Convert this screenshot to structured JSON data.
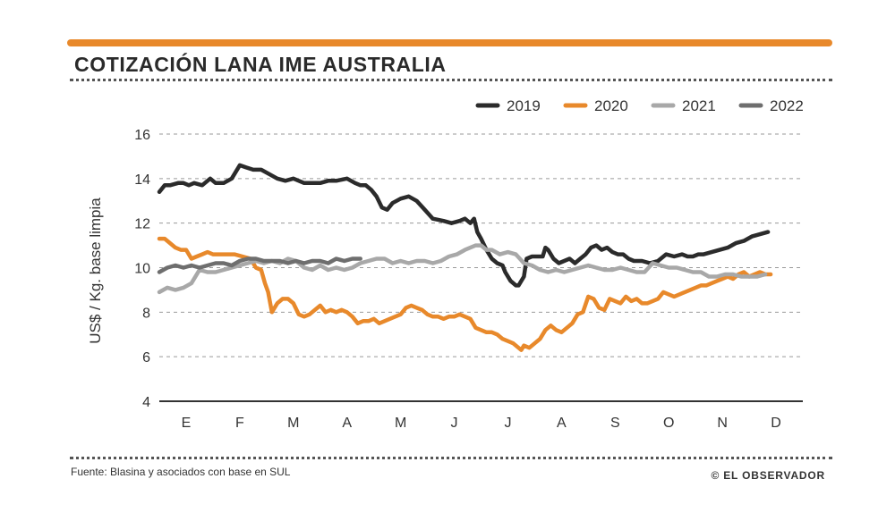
{
  "header": {
    "title": "COTIZACIÓN LANA IME AUSTRALIA"
  },
  "footer": {
    "source": "Fuente: Blasina y asociados con base en SUL",
    "credit": "© EL OBSERVADOR"
  },
  "colors": {
    "accent": "#e8892b"
  },
  "chart_data": {
    "type": "line",
    "title": "COTIZACIÓN LANA IME AUSTRALIA",
    "xlabel": "",
    "ylabel": "US$ / Kg. base limpia",
    "ylim": [
      4,
      16
    ],
    "yticks": [
      4,
      6,
      8,
      10,
      12,
      14,
      16
    ],
    "xlim": [
      0,
      12
    ],
    "months": [
      "E",
      "F",
      "M",
      "A",
      "M",
      "J",
      "J",
      "A",
      "S",
      "O",
      "N",
      "D"
    ],
    "grid": true,
    "legend_position": "top-right",
    "series": [
      {
        "name": "2019",
        "color": "#2b2b2b",
        "x": [
          0.0,
          0.1,
          0.2,
          0.35,
          0.45,
          0.55,
          0.65,
          0.8,
          0.95,
          1.05,
          1.2,
          1.35,
          1.5,
          1.62,
          1.75,
          1.9,
          2.05,
          2.2,
          2.35,
          2.5,
          2.7,
          2.85,
          3.0,
          3.15,
          3.3,
          3.5,
          3.65,
          3.75,
          3.85,
          3.95,
          4.05,
          4.15,
          4.25,
          4.35,
          4.5,
          4.65,
          4.8,
          4.95,
          5.1,
          5.3,
          5.45,
          5.6,
          5.7,
          5.8,
          5.87,
          5.93,
          6.0,
          6.1,
          6.2,
          6.3,
          6.4,
          6.45,
          6.55,
          6.65,
          6.7,
          6.8,
          6.85,
          6.95,
          7.05,
          7.15,
          7.2,
          7.25,
          7.35,
          7.45,
          7.55,
          7.65,
          7.75,
          7.85,
          7.95,
          8.05,
          8.15,
          8.25,
          8.35,
          8.45,
          8.55,
          8.65,
          8.75,
          8.85,
          9.0,
          9.15,
          9.3,
          9.45,
          9.6,
          9.75,
          9.85,
          9.95,
          10.05,
          10.15,
          10.3,
          10.45,
          10.6,
          10.75,
          10.9,
          11.05,
          11.2,
          11.35
        ],
        "values": [
          13.4,
          13.7,
          13.7,
          13.8,
          13.8,
          13.7,
          13.8,
          13.7,
          14.0,
          13.8,
          13.8,
          14.0,
          14.6,
          14.5,
          14.4,
          14.4,
          14.2,
          14.0,
          13.9,
          14.0,
          13.8,
          13.8,
          13.8,
          13.9,
          13.9,
          14.0,
          13.8,
          13.7,
          13.7,
          13.5,
          13.2,
          12.7,
          12.6,
          12.9,
          13.1,
          13.2,
          13.0,
          12.6,
          12.2,
          12.1,
          12.0,
          12.1,
          12.2,
          12.0,
          12.2,
          11.6,
          11.3,
          10.8,
          10.4,
          10.2,
          10.1,
          9.8,
          9.4,
          9.2,
          9.2,
          9.6,
          10.4,
          10.5,
          10.5,
          10.5,
          10.9,
          10.8,
          10.4,
          10.2,
          10.3,
          10.4,
          10.2,
          10.4,
          10.6,
          10.9,
          11.0,
          10.8,
          10.9,
          10.7,
          10.6,
          10.6,
          10.4,
          10.3,
          10.3,
          10.2,
          10.3,
          10.6,
          10.5,
          10.6,
          10.5,
          10.5,
          10.6,
          10.6,
          10.7,
          10.8,
          10.9,
          11.1,
          11.2,
          11.4,
          11.5,
          11.6
        ]
      },
      {
        "name": "2020",
        "color": "#e8892b",
        "x": [
          0.0,
          0.1,
          0.2,
          0.3,
          0.4,
          0.5,
          0.6,
          0.7,
          0.8,
          0.9,
          1.0,
          1.1,
          1.25,
          1.4,
          1.55,
          1.7,
          1.8,
          1.9,
          1.97,
          2.03,
          2.1,
          2.2,
          2.3,
          2.4,
          2.5,
          2.6,
          2.7,
          2.8,
          2.9,
          3.0,
          3.1,
          3.2,
          3.3,
          3.4,
          3.5,
          3.6,
          3.7,
          3.8,
          3.9,
          4.0,
          4.1,
          4.2,
          4.3,
          4.4,
          4.5,
          4.6,
          4.7,
          4.8,
          4.9,
          5.0,
          5.1,
          5.2,
          5.3,
          5.4,
          5.5,
          5.6,
          5.7,
          5.8,
          5.9,
          6.0,
          6.1,
          6.2,
          6.3,
          6.4,
          6.5,
          6.6,
          6.7,
          6.75,
          6.8,
          6.9,
          7.0,
          7.1,
          7.2,
          7.3,
          7.4,
          7.5,
          7.6,
          7.7,
          7.8,
          7.9,
          8.0,
          8.1,
          8.2,
          8.3,
          8.4,
          8.5,
          8.6,
          8.7,
          8.8,
          8.9,
          9.0,
          9.1,
          9.2,
          9.3,
          9.4,
          9.5,
          9.6,
          9.7,
          9.8,
          9.9,
          10.0,
          10.1,
          10.2,
          10.3,
          10.4,
          10.5,
          10.6,
          10.7,
          10.8,
          10.9,
          11.0,
          11.1,
          11.2,
          11.3,
          11.4
        ],
        "values": [
          11.3,
          11.3,
          11.1,
          10.9,
          10.8,
          10.8,
          10.4,
          10.5,
          10.6,
          10.7,
          10.6,
          10.6,
          10.6,
          10.6,
          10.5,
          10.4,
          10.0,
          9.9,
          9.3,
          8.9,
          8.0,
          8.4,
          8.6,
          8.6,
          8.4,
          7.9,
          7.8,
          7.9,
          8.1,
          8.3,
          8.0,
          8.1,
          8.0,
          8.1,
          8.0,
          7.8,
          7.5,
          7.6,
          7.6,
          7.7,
          7.5,
          7.6,
          7.7,
          7.8,
          7.9,
          8.2,
          8.3,
          8.2,
          8.1,
          7.9,
          7.8,
          7.8,
          7.7,
          7.8,
          7.8,
          7.9,
          7.8,
          7.7,
          7.3,
          7.2,
          7.1,
          7.1,
          7.0,
          6.8,
          6.7,
          6.6,
          6.4,
          6.3,
          6.5,
          6.4,
          6.6,
          6.8,
          7.2,
          7.4,
          7.2,
          7.1,
          7.3,
          7.5,
          7.9,
          8.0,
          8.7,
          8.6,
          8.2,
          8.1,
          8.6,
          8.5,
          8.4,
          8.7,
          8.5,
          8.6,
          8.4,
          8.4,
          8.5,
          8.6,
          8.9,
          8.8,
          8.7,
          8.8,
          8.9,
          9.0,
          9.1,
          9.2,
          9.2,
          9.3,
          9.4,
          9.5,
          9.6,
          9.5,
          9.7,
          9.8,
          9.6,
          9.7,
          9.8,
          9.7,
          9.7
        ]
      },
      {
        "name": "2021",
        "color": "#a8a8a8",
        "x": [
          0.0,
          0.15,
          0.3,
          0.45,
          0.6,
          0.75,
          0.9,
          1.05,
          1.2,
          1.35,
          1.5,
          1.65,
          1.8,
          1.95,
          2.1,
          2.25,
          2.4,
          2.55,
          2.7,
          2.85,
          3.0,
          3.15,
          3.3,
          3.45,
          3.6,
          3.75,
          3.9,
          4.05,
          4.2,
          4.35,
          4.5,
          4.65,
          4.8,
          4.95,
          5.1,
          5.25,
          5.4,
          5.55,
          5.7,
          5.8,
          5.9,
          6.0,
          6.1,
          6.2,
          6.35,
          6.5,
          6.65,
          6.8,
          6.95,
          7.1,
          7.25,
          7.4,
          7.55,
          7.7,
          7.85,
          8.0,
          8.15,
          8.3,
          8.45,
          8.6,
          8.75,
          8.9,
          9.05,
          9.2,
          9.35,
          9.5,
          9.65,
          9.8,
          9.95,
          10.1,
          10.25,
          10.4,
          10.55,
          10.7,
          10.85,
          11.0,
          11.15,
          11.3
        ],
        "values": [
          8.9,
          9.1,
          9.0,
          9.1,
          9.3,
          9.9,
          9.8,
          9.8,
          9.9,
          10.0,
          10.1,
          10.2,
          10.3,
          10.2,
          10.3,
          10.2,
          10.4,
          10.3,
          10.0,
          9.9,
          10.1,
          9.9,
          10.0,
          9.9,
          10.0,
          10.2,
          10.3,
          10.4,
          10.4,
          10.2,
          10.3,
          10.2,
          10.3,
          10.3,
          10.2,
          10.3,
          10.5,
          10.6,
          10.8,
          10.9,
          11.0,
          11.0,
          10.8,
          10.8,
          10.6,
          10.7,
          10.6,
          10.2,
          10.1,
          9.9,
          9.8,
          9.9,
          9.8,
          9.9,
          10.0,
          10.1,
          10.0,
          9.9,
          9.9,
          10.0,
          9.9,
          9.8,
          9.8,
          10.2,
          10.1,
          10.0,
          10.0,
          9.9,
          9.8,
          9.8,
          9.6,
          9.6,
          9.7,
          9.7,
          9.6,
          9.6,
          9.6,
          9.7
        ]
      },
      {
        "name": "2022",
        "color": "#6e6e6e",
        "x": [
          0.0,
          0.15,
          0.3,
          0.45,
          0.6,
          0.75,
          0.9,
          1.05,
          1.2,
          1.35,
          1.5,
          1.65,
          1.8,
          1.95,
          2.1,
          2.25,
          2.4,
          2.55,
          2.7,
          2.85,
          3.0,
          3.15,
          3.3,
          3.45,
          3.6,
          3.75
        ],
        "values": [
          9.8,
          10.0,
          10.1,
          10.0,
          10.1,
          10.0,
          10.1,
          10.2,
          10.2,
          10.1,
          10.3,
          10.4,
          10.4,
          10.3,
          10.3,
          10.3,
          10.2,
          10.3,
          10.2,
          10.3,
          10.3,
          10.2,
          10.4,
          10.3,
          10.4,
          10.4
        ]
      }
    ]
  }
}
